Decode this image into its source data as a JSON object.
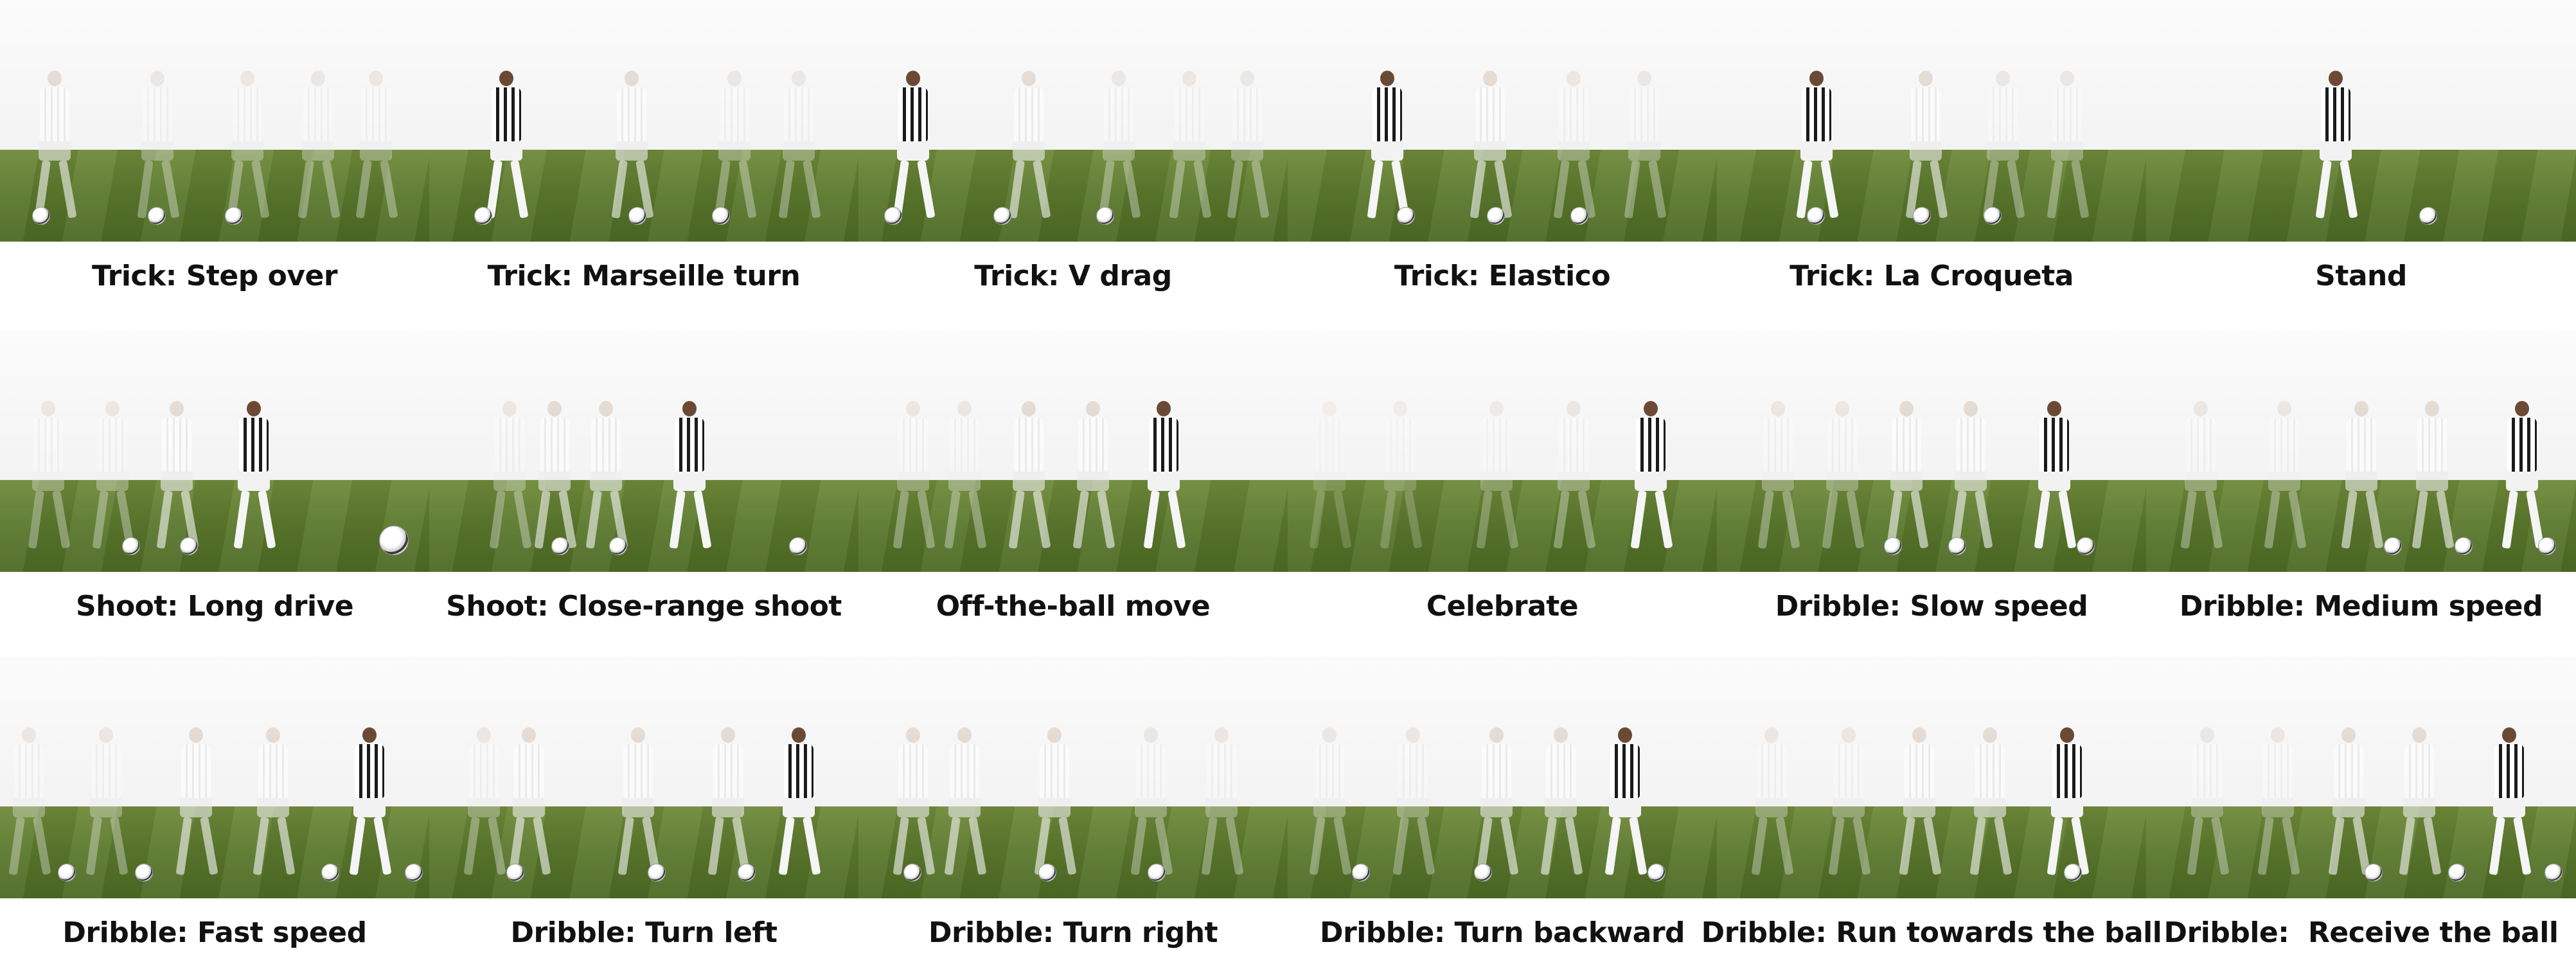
{
  "rows": [
    {
      "cells": [
        {
          "caption": "Trick: Step over"
        },
        {
          "caption": "Trick: Marseille turn"
        },
        {
          "caption": "Trick: V drag"
        },
        {
          "caption": "Trick: Elastico"
        },
        {
          "caption": "Trick: La Croqueta"
        },
        {
          "caption": "Stand"
        }
      ]
    },
    {
      "cells": [
        {
          "caption": "Shoot: Long drive"
        },
        {
          "caption": "Shoot: Close-range shoot"
        },
        {
          "caption": "Off-the-ball move"
        },
        {
          "caption": "Celebrate"
        },
        {
          "caption": "Dribble: Slow speed"
        },
        {
          "caption": "Dribble: Medium speed"
        }
      ]
    },
    {
      "cells": [
        {
          "caption": "Dribble: Fast speed"
        },
        {
          "caption": "Dribble: Turn left"
        },
        {
          "caption": "Dribble: Turn right"
        },
        {
          "caption": "Dribble: Turn backward"
        },
        {
          "caption": "Dribble: Run towards the ball"
        },
        {
          "caption": "Dribble:  Receive the ball"
        }
      ]
    }
  ]
}
